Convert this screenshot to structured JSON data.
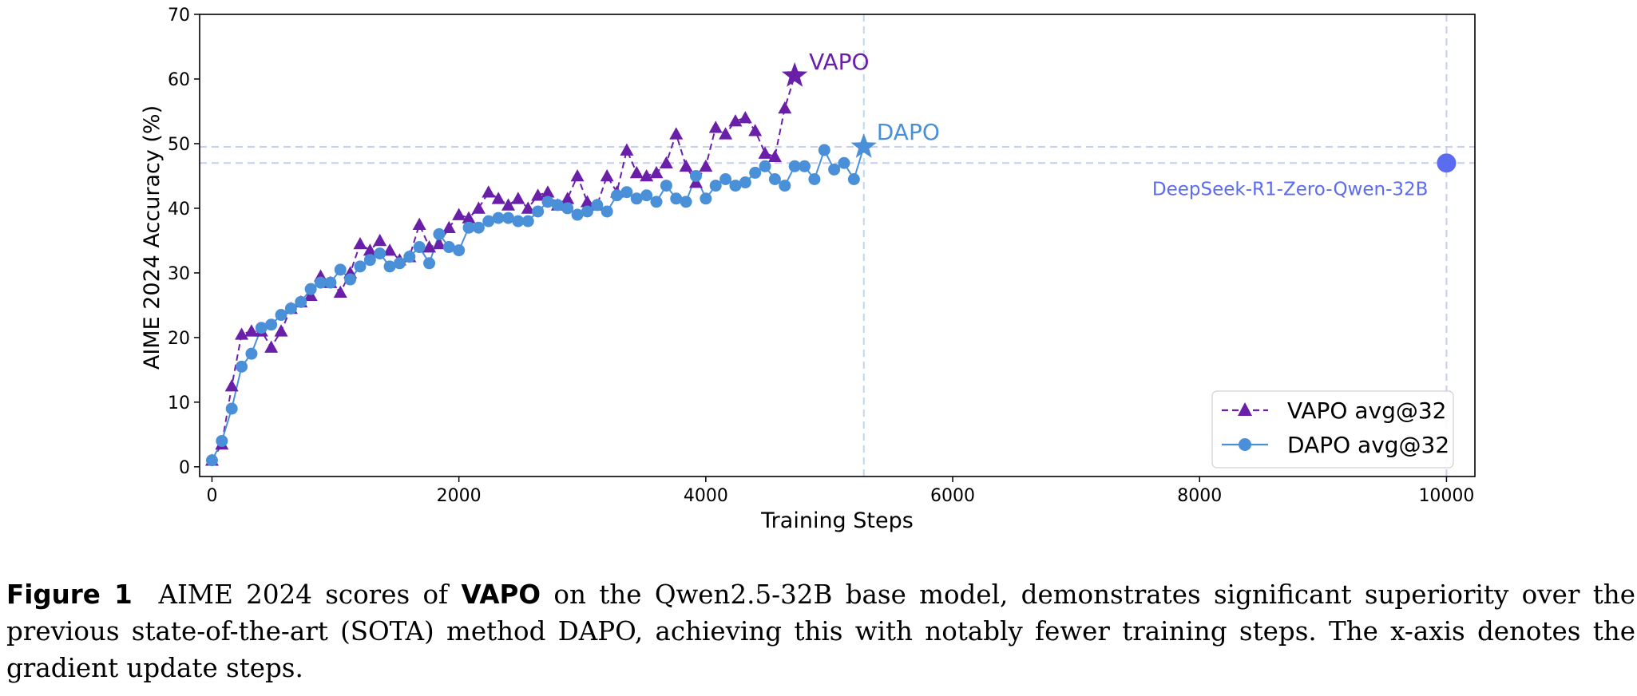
{
  "chart_data": {
    "type": "line",
    "xlabel": "Training Steps",
    "ylabel": "AIME 2024 Accuracy (%)",
    "xlim": [
      -100,
      10230
    ],
    "ylim": [
      -1.5,
      70
    ],
    "xticks": [
      0,
      2000,
      4000,
      6000,
      8000,
      10000
    ],
    "xtick_labels": [
      "0",
      "2000",
      "4000",
      "6000",
      "8000",
      "10000"
    ],
    "yticks": [
      0,
      10,
      20,
      30,
      40,
      50,
      60,
      70
    ],
    "ytick_labels": [
      "0",
      "10",
      "20",
      "30",
      "40",
      "50",
      "60",
      "70"
    ],
    "legend_position": "lower-right",
    "series": [
      {
        "name": "VAPO avg@32",
        "color": "#6a1fa8",
        "marker": "triangle",
        "linestyle": "dashed",
        "x": [
          0,
          80,
          160,
          240,
          320,
          400,
          480,
          560,
          640,
          720,
          800,
          880,
          960,
          1040,
          1120,
          1200,
          1280,
          1360,
          1440,
          1520,
          1600,
          1680,
          1760,
          1840,
          1920,
          2000,
          2080,
          2160,
          2240,
          2320,
          2400,
          2480,
          2560,
          2640,
          2720,
          2800,
          2880,
          2960,
          3040,
          3120,
          3200,
          3280,
          3360,
          3440,
          3520,
          3600,
          3680,
          3760,
          3840,
          3920,
          4000,
          4080,
          4160,
          4240,
          4320,
          4400,
          4480,
          4560,
          4640
        ],
        "y": [
          1.0,
          3.5,
          12.5,
          20.5,
          21.0,
          21.0,
          18.5,
          21.0,
          24.5,
          25.5,
          26.5,
          29.5,
          28.5,
          27.0,
          30.0,
          34.5,
          33.5,
          35.0,
          33.5,
          32.0,
          32.5,
          37.5,
          34.0,
          34.5,
          37.0,
          39.0,
          38.5,
          40.0,
          42.5,
          41.5,
          40.5,
          41.5,
          40.0,
          42.0,
          42.5,
          40.5,
          41.5,
          45.0,
          41.0,
          40.5,
          45.0,
          42.5,
          49.0,
          45.5,
          45.0,
          45.5,
          47.0,
          51.5,
          46.5,
          44.0,
          46.5,
          52.5,
          51.5,
          53.5,
          54.0,
          52.0,
          48.5,
          48.0,
          55.5
        ]
      },
      {
        "name": "DAPO avg@32",
        "color": "#4a90d9",
        "marker": "circle",
        "linestyle": "solid",
        "x": [
          0,
          80,
          160,
          240,
          320,
          400,
          480,
          560,
          640,
          720,
          800,
          880,
          960,
          1040,
          1120,
          1200,
          1280,
          1360,
          1440,
          1520,
          1600,
          1680,
          1760,
          1840,
          1920,
          2000,
          2080,
          2160,
          2240,
          2320,
          2400,
          2480,
          2560,
          2640,
          2720,
          2800,
          2880,
          2960,
          3040,
          3120,
          3200,
          3280,
          3360,
          3440,
          3520,
          3600,
          3680,
          3760,
          3840,
          3920,
          4000,
          4080,
          4160,
          4240,
          4320,
          4400,
          4480,
          4560,
          4640,
          4720,
          4800,
          4880,
          4960,
          5040,
          5120,
          5200
        ],
        "y": [
          1.0,
          4.0,
          9.0,
          15.5,
          17.5,
          21.5,
          22.0,
          23.5,
          24.5,
          25.5,
          27.5,
          28.5,
          28.5,
          30.5,
          29.0,
          31.0,
          32.0,
          33.0,
          31.0,
          31.5,
          32.5,
          34.0,
          31.5,
          36.0,
          34.0,
          33.5,
          37.0,
          37.0,
          38.0,
          38.5,
          38.5,
          38.0,
          38.0,
          39.5,
          41.0,
          40.5,
          40.0,
          39.0,
          39.5,
          40.5,
          39.5,
          42.0,
          42.5,
          41.5,
          42.0,
          41.0,
          43.5,
          41.5,
          41.0,
          45.0,
          41.5,
          43.5,
          44.5,
          43.5,
          44.0,
          45.5,
          46.5,
          44.5,
          43.5,
          46.5,
          46.5,
          44.5,
          49.0,
          46.0,
          47.0,
          44.5
        ]
      }
    ],
    "final_points": [
      {
        "name": "VAPO",
        "x": 4720,
        "y": 60.5,
        "marker": "star",
        "color": "#6a1fa8"
      },
      {
        "name": "DAPO",
        "x": 5280,
        "y": 49.5,
        "marker": "star",
        "color": "#4a90d9"
      },
      {
        "name": "DeepSeek-R1-Zero-Qwen-32B",
        "x": 10000,
        "y": 47.0,
        "marker": "circle",
        "color": "#5b6cf0"
      }
    ],
    "reference_lines": {
      "horizontal": [
        {
          "y": 49.5,
          "color": "#c6cdf2"
        },
        {
          "y": 47.0,
          "color": "#c6cdf2"
        }
      ],
      "vertical": [
        {
          "x": 5280,
          "color": "#bcd8ea"
        },
        {
          "x": 10000,
          "color": "#c6cdf2"
        }
      ]
    },
    "annotations": {
      "vapo": "VAPO",
      "dapo": "DAPO",
      "deepseek": "DeepSeek-R1-Zero-Qwen-32B"
    }
  },
  "caption": {
    "label": "Figure 1",
    "text_before": "AIME 2024 scores of",
    "bold_word": "VAPO",
    "text_after": "on the Qwen2.5-32B base model, demonstrates significant superiority over the previous state-of-the-art (SOTA) method DAPO, achieving this with notably fewer training steps. The x-axis denotes the gradient update steps."
  }
}
